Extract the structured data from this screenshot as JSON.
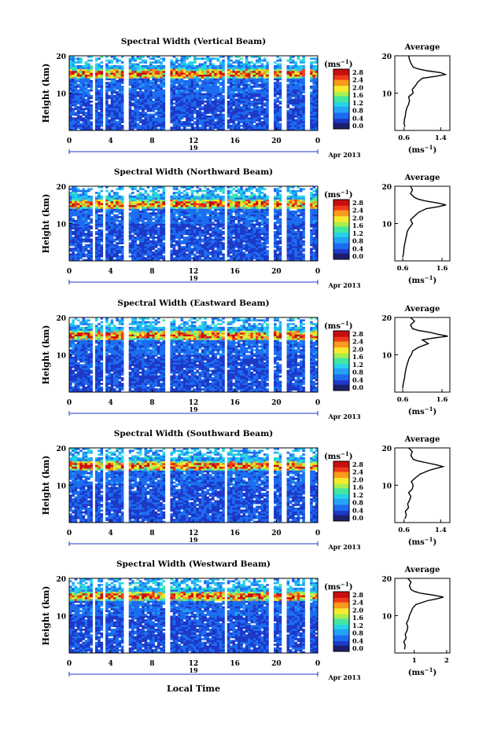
{
  "figure": {
    "xlabel_bottom": "Local Time",
    "cbar_unit": "(ms",
    "cbar_unit_exp": "−1",
    "avg_title": "Average",
    "avg_unit": "(ms",
    "avg_unit_exp": "−1",
    "date_day": "19",
    "date_label": "Apr 2013",
    "colormap": [
      "#1a1f6b",
      "#1d38c8",
      "#1c6cf0",
      "#24a3f6",
      "#26d3e8",
      "#45e6a2",
      "#a6ef4e",
      "#f6ea2e",
      "#f89a1d",
      "#ee3a1a",
      "#c70f10"
    ]
  },
  "chart_data": [
    {
      "type": "heatmap",
      "title": "Spectral Width (Vertical Beam)",
      "ylabel": "Height (km)",
      "xlim": [
        0,
        24
      ],
      "ylim": [
        0,
        20
      ],
      "xticks": [
        "0",
        "4",
        "8",
        "12",
        "16",
        "20",
        "0"
      ],
      "yticks": [
        "10",
        "20"
      ],
      "colorbar": {
        "range": [
          0.0,
          3.0
        ],
        "ticks": [
          "2.8",
          "2.4",
          "2.0",
          "1.6",
          "1.2",
          "0.8",
          "0.4",
          "0.0"
        ]
      },
      "average_profile": {
        "xticks": [
          "0.6",
          "1.4"
        ],
        "xlim": [
          0.4,
          1.6
        ],
        "height": [
          1,
          2,
          3,
          4,
          5,
          6,
          7,
          8,
          9,
          10,
          11,
          12,
          13,
          14,
          14.5,
          15,
          15.5,
          16,
          16.5,
          17,
          18,
          19,
          20
        ],
        "value": [
          0.62,
          0.6,
          0.61,
          0.63,
          0.64,
          0.66,
          0.7,
          0.72,
          0.7,
          0.8,
          0.78,
          0.85,
          0.9,
          1.0,
          1.3,
          1.5,
          1.4,
          1.1,
          0.9,
          0.8,
          0.75,
          0.72,
          0.7
        ]
      }
    },
    {
      "type": "heatmap",
      "title": "Spectral Width (Northward Beam)",
      "ylabel": "Height (km)",
      "xlim": [
        0,
        24
      ],
      "ylim": [
        0,
        20
      ],
      "xticks": [
        "0",
        "4",
        "8",
        "12",
        "16",
        "20",
        "0"
      ],
      "yticks": [
        "10",
        "20"
      ],
      "colorbar": {
        "range": [
          0.0,
          3.0
        ],
        "ticks": [
          "2.8",
          "2.4",
          "2.0",
          "1.6",
          "1.2",
          "0.8",
          "0.4",
          "0.0"
        ]
      },
      "average_profile": {
        "xticks": [
          "0.6",
          "1.6"
        ],
        "xlim": [
          0.4,
          1.8
        ],
        "height": [
          1,
          2,
          3,
          4,
          5,
          6,
          7,
          8,
          9,
          10,
          11,
          12,
          13,
          14,
          14.5,
          15,
          15.5,
          16,
          16.5,
          17,
          18,
          19,
          20
        ],
        "value": [
          0.6,
          0.62,
          0.63,
          0.64,
          0.66,
          0.68,
          0.7,
          0.72,
          0.78,
          0.85,
          0.8,
          0.9,
          1.0,
          1.2,
          1.5,
          1.7,
          1.5,
          1.2,
          1.0,
          0.9,
          0.8,
          0.85,
          0.8
        ]
      }
    },
    {
      "type": "heatmap",
      "title": "Spectral Width (Eastward Beam)",
      "ylabel": "Height (km)",
      "xlim": [
        0,
        24
      ],
      "ylim": [
        0,
        20
      ],
      "xticks": [
        "0",
        "4",
        "8",
        "12",
        "16",
        "20",
        "0"
      ],
      "yticks": [
        "10",
        "20"
      ],
      "colorbar": {
        "range": [
          0.0,
          3.0
        ],
        "ticks": [
          "2.8",
          "2.4",
          "2.0",
          "1.6",
          "1.2",
          "0.8",
          "0.4",
          "0.0"
        ]
      },
      "average_profile": {
        "xticks": [
          "0.6",
          "1.6"
        ],
        "xlim": [
          0.4,
          1.8
        ],
        "height": [
          1,
          2,
          3,
          4,
          5,
          6,
          7,
          8,
          9,
          10,
          11,
          12,
          13,
          14,
          14.5,
          15,
          15.5,
          16,
          16.5,
          17,
          18,
          19,
          20
        ],
        "value": [
          0.6,
          0.61,
          0.63,
          0.65,
          0.66,
          0.68,
          0.7,
          0.73,
          0.76,
          0.82,
          0.85,
          1.0,
          1.25,
          1.1,
          1.4,
          1.75,
          1.5,
          1.3,
          1.0,
          0.85,
          0.8,
          0.9,
          0.8
        ]
      }
    },
    {
      "type": "heatmap",
      "title": "Spectral Width (Southward Beam)",
      "ylabel": "Height (km)",
      "xlim": [
        0,
        24
      ],
      "ylim": [
        0,
        20
      ],
      "xticks": [
        "0",
        "4",
        "8",
        "12",
        "16",
        "20",
        "0"
      ],
      "yticks": [
        "10",
        "20"
      ],
      "colorbar": {
        "range": [
          0.0,
          3.0
        ],
        "ticks": [
          "2.8",
          "2.4",
          "2.0",
          "1.6",
          "1.2",
          "0.8",
          "0.4",
          "0.0"
        ]
      },
      "average_profile": {
        "xticks": [
          "0.6",
          "1.4"
        ],
        "xlim": [
          0.4,
          1.6
        ],
        "height": [
          1,
          2,
          3,
          4,
          5,
          6,
          7,
          8,
          9,
          10,
          11,
          12,
          13,
          14,
          14.5,
          15,
          15.5,
          16,
          16.5,
          17,
          18,
          19,
          20
        ],
        "value": [
          0.62,
          0.65,
          0.63,
          0.7,
          0.68,
          0.72,
          0.75,
          0.7,
          0.78,
          0.8,
          0.76,
          0.85,
          0.95,
          1.15,
          1.3,
          1.45,
          1.3,
          1.1,
          0.9,
          0.8,
          0.75,
          0.78,
          0.7
        ]
      }
    },
    {
      "type": "heatmap",
      "title": "Spectral Width (Westward Beam)",
      "ylabel": "Height (km)",
      "xlim": [
        0,
        24
      ],
      "ylim": [
        0,
        20
      ],
      "xticks": [
        "0",
        "4",
        "8",
        "12",
        "16",
        "20",
        "0"
      ],
      "yticks": [
        "10",
        "20"
      ],
      "colorbar": {
        "range": [
          0.0,
          3.0
        ],
        "ticks": [
          "2.8",
          "2.4",
          "2.0",
          "1.6",
          "1.2",
          "0.8",
          "0.4",
          "0.0"
        ]
      },
      "average_profile": {
        "xticks": [
          "1",
          "2"
        ],
        "xlim": [
          0.4,
          2.1
        ],
        "height": [
          1,
          2,
          3,
          4,
          5,
          6,
          7,
          8,
          9,
          10,
          11,
          12,
          13,
          14,
          14.5,
          15,
          15.5,
          16,
          16.5,
          17,
          18,
          19,
          20
        ],
        "value": [
          0.7,
          0.72,
          0.68,
          0.75,
          0.72,
          0.78,
          0.8,
          0.76,
          0.82,
          0.85,
          0.9,
          0.95,
          1.05,
          1.4,
          1.7,
          1.9,
          1.6,
          1.2,
          1.0,
          0.9,
          0.85,
          0.9,
          0.8
        ]
      }
    }
  ]
}
